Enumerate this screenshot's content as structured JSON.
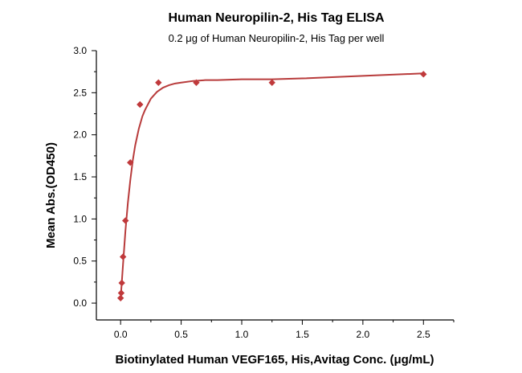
{
  "chart_data": {
    "type": "scatter",
    "title": "Human Neuropilin-2, His Tag ELISA",
    "subtitle": "0.2 μg of Human Neuropilin-2, His Tag per well",
    "xlabel": "Biotinylated Human VEGF165, His,Avitag Conc. (μg/mL)",
    "ylabel": "Mean Abs.(OD450)",
    "xlim": [
      -0.2,
      2.75
    ],
    "ylim": [
      -0.2,
      3.0
    ],
    "xticks": [
      0.0,
      0.5,
      1.0,
      1.5,
      2.0,
      2.5
    ],
    "xtick_labels": [
      "0.0",
      "0.5",
      "1.0",
      "1.5",
      "2.0",
      "2.5"
    ],
    "yticks": [
      0.0,
      0.5,
      1.0,
      1.5,
      2.0,
      2.5,
      3.0
    ],
    "ytick_labels": [
      "0.0",
      "0.5",
      "1.0",
      "1.5",
      "2.0",
      "2.5",
      "3.0"
    ],
    "grid": false,
    "series": [
      {
        "x": [
          0.0,
          0.005,
          0.01,
          0.02,
          0.04,
          0.08,
          0.16,
          0.3125,
          0.625,
          1.25,
          2.5
        ],
        "y": [
          0.06,
          0.12,
          0.24,
          0.55,
          0.98,
          1.67,
          2.36,
          2.62,
          2.62,
          2.62,
          2.72
        ],
        "color": "#c0393b",
        "marker": "diamond"
      }
    ],
    "fit_curve": {
      "model": "4PL",
      "x": [
        0.0,
        0.01,
        0.02,
        0.04,
        0.06,
        0.08,
        0.1,
        0.12,
        0.15,
        0.18,
        0.2,
        0.25,
        0.3,
        0.35,
        0.4,
        0.45,
        0.5,
        0.6,
        0.7,
        0.8,
        1.0,
        1.25,
        1.5,
        2.0,
        2.5
      ],
      "y": [
        0.05,
        0.25,
        0.46,
        0.86,
        1.19,
        1.46,
        1.69,
        1.87,
        2.07,
        2.22,
        2.29,
        2.43,
        2.51,
        2.56,
        2.59,
        2.61,
        2.62,
        2.64,
        2.65,
        2.65,
        2.66,
        2.66,
        2.67,
        2.7,
        2.73
      ],
      "color": "#b83b3b"
    }
  }
}
